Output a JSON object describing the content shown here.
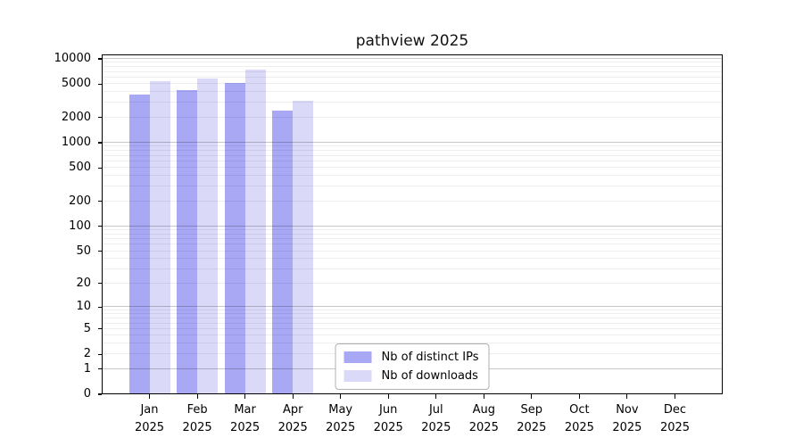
{
  "title": "pathview 2025",
  "chart_data": {
    "type": "bar",
    "title": "pathview 2025",
    "scale": "log10(value+1)",
    "grid": true,
    "legend_position": "lower center",
    "ylim": [
      0,
      10000
    ],
    "yticks": [
      10000,
      5000,
      2000,
      1000,
      500,
      200,
      100,
      50,
      20,
      10,
      5,
      2,
      1,
      0
    ],
    "categories": [
      "Jan 2025",
      "Feb 2025",
      "Mar 2025",
      "Apr 2025",
      "May 2025",
      "Jun 2025",
      "Jul 2025",
      "Aug 2025",
      "Sep 2025",
      "Oct 2025",
      "Nov 2025",
      "Dec 2025"
    ],
    "series": [
      {
        "name": "Nb of distinct IPs",
        "color": "#a8a8f5",
        "values": [
          3750,
          4250,
          5150,
          2400,
          null,
          null,
          null,
          null,
          null,
          null,
          null,
          null
        ]
      },
      {
        "name": "Nb of downloads",
        "color": "#dadaf8",
        "values": [
          5400,
          5900,
          7550,
          3150,
          null,
          null,
          null,
          null,
          null,
          null,
          null,
          null
        ]
      }
    ]
  }
}
